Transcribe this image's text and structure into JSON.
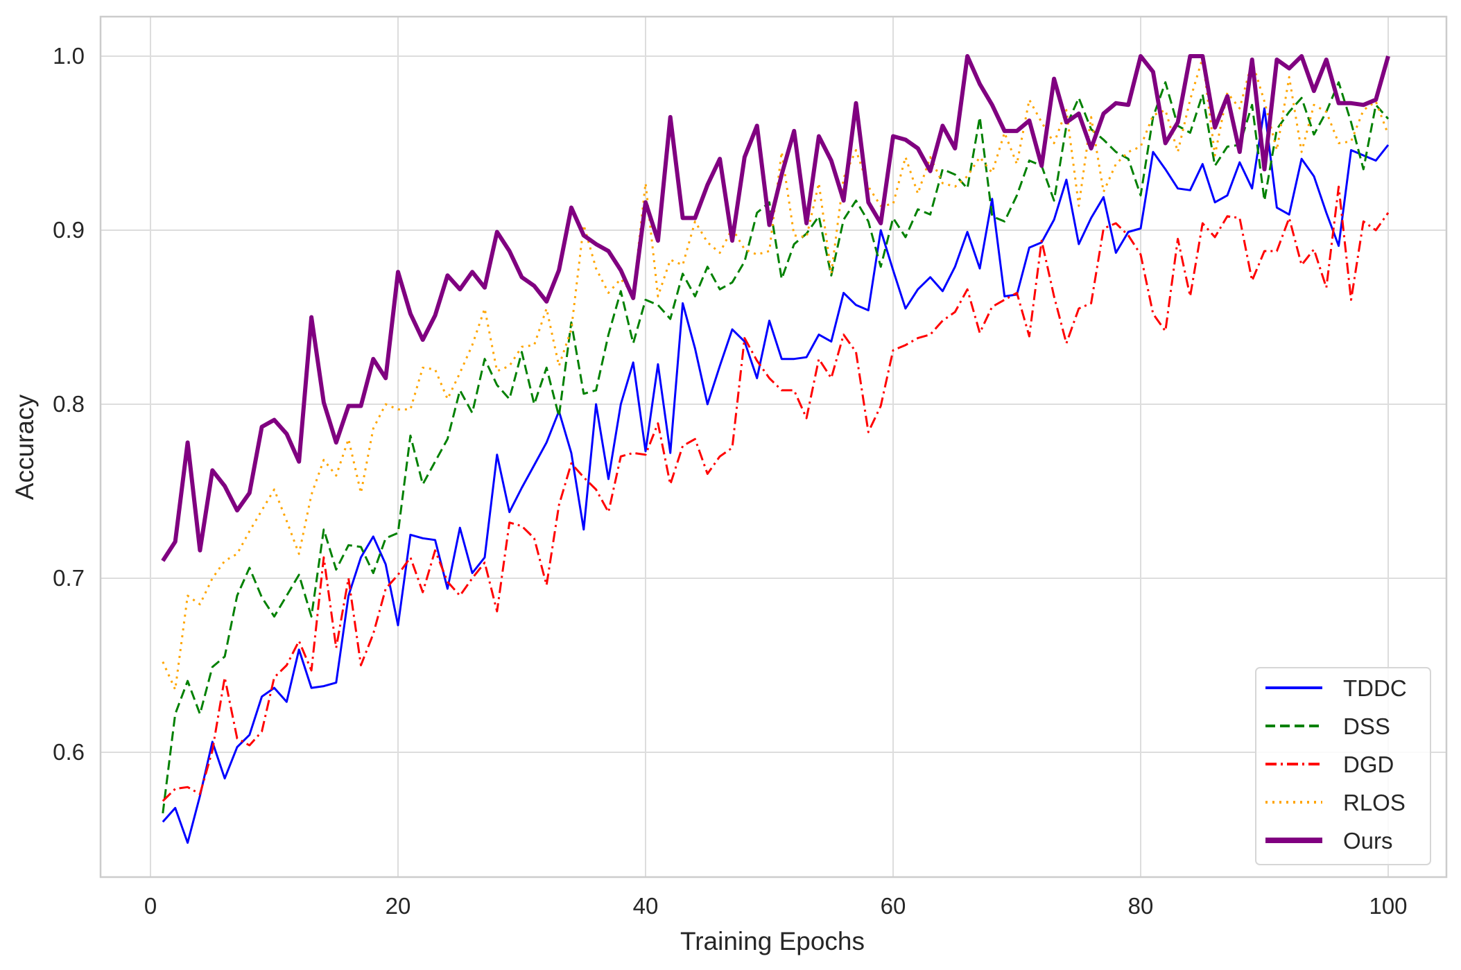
{
  "chart_data": {
    "type": "line",
    "title": "",
    "xlabel": "Training Epochs",
    "ylabel": "Accuracy",
    "xlim": [
      -4,
      104
    ],
    "ylim": [
      0.522,
      1.022
    ],
    "xticks": [
      0,
      20,
      40,
      60,
      80,
      100
    ],
    "xtick_labels": [
      "0",
      "20",
      "40",
      "60",
      "80",
      "100"
    ],
    "yticks": [
      0.6,
      0.7,
      0.8,
      0.9,
      1.0
    ],
    "ytick_labels": [
      "0.6",
      "0.7",
      "0.8",
      "0.9",
      "1.0"
    ],
    "grid": true,
    "legend_position": "lower right",
    "x": [
      1,
      2,
      3,
      4,
      5,
      6,
      7,
      8,
      9,
      10,
      11,
      12,
      13,
      14,
      15,
      16,
      17,
      18,
      19,
      20,
      21,
      22,
      23,
      24,
      25,
      26,
      27,
      28,
      29,
      30,
      31,
      32,
      33,
      34,
      35,
      36,
      37,
      38,
      39,
      40,
      41,
      42,
      43,
      44,
      45,
      46,
      47,
      48,
      49,
      50,
      51,
      52,
      53,
      54,
      55,
      56,
      57,
      58,
      59,
      60,
      61,
      62,
      63,
      64,
      65,
      66,
      67,
      68,
      69,
      70,
      71,
      72,
      73,
      74,
      75,
      76,
      77,
      78,
      79,
      80,
      81,
      82,
      83,
      84,
      85,
      86,
      87,
      88,
      89,
      90,
      91,
      92,
      93,
      94,
      95,
      96,
      97,
      98,
      99,
      100
    ],
    "series": [
      {
        "name": "TDDC",
        "color": "#0000ff",
        "style": "solid",
        "linewidth": 2,
        "values": [
          0.56,
          0.568,
          0.548,
          0.575,
          0.606,
          0.585,
          0.603,
          0.61,
          0.632,
          0.637,
          0.629,
          0.659,
          0.637,
          0.638,
          0.64,
          0.69,
          0.712,
          0.724,
          0.708,
          0.673,
          0.725,
          0.723,
          0.722,
          0.694,
          0.729,
          0.703,
          0.712,
          0.771,
          0.738,
          0.752,
          0.765,
          0.778,
          0.796,
          0.772,
          0.728,
          0.8,
          0.757,
          0.8,
          0.824,
          0.773,
          0.823,
          0.772,
          0.858,
          0.832,
          0.8,
          0.822,
          0.843,
          0.836,
          0.815,
          0.848,
          0.826,
          0.826,
          0.827,
          0.84,
          0.836,
          0.864,
          0.857,
          0.854,
          0.9,
          0.877,
          0.855,
          0.866,
          0.873,
          0.865,
          0.879,
          0.899,
          0.878,
          0.918,
          0.862,
          0.863,
          0.89,
          0.893,
          0.906,
          0.929,
          0.892,
          0.907,
          0.919,
          0.887,
          0.899,
          0.901,
          0.945,
          0.935,
          0.924,
          0.923,
          0.938,
          0.916,
          0.92,
          0.939,
          0.924,
          0.97,
          0.913,
          0.909,
          0.941,
          0.931,
          0.91,
          0.891,
          0.946,
          0.943,
          0.94,
          0.949
        ]
      },
      {
        "name": "DSS",
        "color": "#008000",
        "style": "dashed",
        "linewidth": 2,
        "values": [
          0.565,
          0.622,
          0.641,
          0.622,
          0.649,
          0.655,
          0.69,
          0.706,
          0.689,
          0.678,
          0.69,
          0.702,
          0.678,
          0.728,
          0.705,
          0.719,
          0.718,
          0.703,
          0.723,
          0.726,
          0.782,
          0.754,
          0.767,
          0.78,
          0.808,
          0.795,
          0.826,
          0.811,
          0.803,
          0.83,
          0.8,
          0.821,
          0.793,
          0.847,
          0.806,
          0.808,
          0.84,
          0.865,
          0.835,
          0.86,
          0.857,
          0.849,
          0.875,
          0.862,
          0.879,
          0.866,
          0.87,
          0.882,
          0.91,
          0.916,
          0.872,
          0.892,
          0.898,
          0.908,
          0.874,
          0.906,
          0.917,
          0.905,
          0.879,
          0.907,
          0.896,
          0.912,
          0.909,
          0.935,
          0.932,
          0.924,
          0.965,
          0.908,
          0.905,
          0.92,
          0.94,
          0.937,
          0.917,
          0.96,
          0.976,
          0.958,
          0.952,
          0.945,
          0.941,
          0.92,
          0.965,
          0.985,
          0.96,
          0.956,
          0.978,
          0.937,
          0.948,
          0.949,
          0.972,
          0.917,
          0.958,
          0.968,
          0.976,
          0.955,
          0.968,
          0.985,
          0.962,
          0.935,
          0.972,
          0.964
        ]
      },
      {
        "name": "DGD",
        "color": "#ff0000",
        "style": "dashdot",
        "linewidth": 2,
        "values": [
          0.572,
          0.579,
          0.58,
          0.576,
          0.601,
          0.643,
          0.608,
          0.604,
          0.612,
          0.643,
          0.65,
          0.664,
          0.647,
          0.712,
          0.66,
          0.7,
          0.65,
          0.668,
          0.694,
          0.702,
          0.712,
          0.692,
          0.716,
          0.698,
          0.69,
          0.7,
          0.709,
          0.681,
          0.732,
          0.73,
          0.723,
          0.696,
          0.742,
          0.766,
          0.758,
          0.751,
          0.738,
          0.77,
          0.772,
          0.771,
          0.789,
          0.754,
          0.776,
          0.78,
          0.76,
          0.77,
          0.775,
          0.838,
          0.825,
          0.815,
          0.808,
          0.808,
          0.792,
          0.826,
          0.815,
          0.84,
          0.83,
          0.784,
          0.799,
          0.831,
          0.834,
          0.838,
          0.84,
          0.848,
          0.853,
          0.866,
          0.841,
          0.856,
          0.86,
          0.864,
          0.839,
          0.894,
          0.862,
          0.835,
          0.855,
          0.858,
          0.901,
          0.904,
          0.897,
          0.886,
          0.852,
          0.842,
          0.895,
          0.862,
          0.904,
          0.896,
          0.908,
          0.907,
          0.871,
          0.888,
          0.888,
          0.907,
          0.88,
          0.889,
          0.867,
          0.925,
          0.86,
          0.905,
          0.9,
          0.91
        ]
      },
      {
        "name": "RLOS",
        "color": "#ffa500",
        "style": "dotted",
        "linewidth": 2,
        "values": [
          0.652,
          0.636,
          0.69,
          0.685,
          0.7,
          0.71,
          0.714,
          0.727,
          0.739,
          0.751,
          0.733,
          0.714,
          0.748,
          0.768,
          0.759,
          0.78,
          0.749,
          0.786,
          0.8,
          0.797,
          0.797,
          0.821,
          0.82,
          0.803,
          0.818,
          0.834,
          0.855,
          0.819,
          0.822,
          0.833,
          0.834,
          0.855,
          0.822,
          0.843,
          0.903,
          0.878,
          0.864,
          0.872,
          0.863,
          0.927,
          0.862,
          0.883,
          0.88,
          0.905,
          0.893,
          0.887,
          0.901,
          0.889,
          0.886,
          0.888,
          0.945,
          0.897,
          0.896,
          0.927,
          0.875,
          0.93,
          0.946,
          0.925,
          0.914,
          0.915,
          0.942,
          0.921,
          0.942,
          0.927,
          0.925,
          0.931,
          0.942,
          0.933,
          0.956,
          0.938,
          0.975,
          0.962,
          0.95,
          0.969,
          0.914,
          0.965,
          0.922,
          0.938,
          0.945,
          0.948,
          0.966,
          0.969,
          0.945,
          0.975,
          0.999,
          0.943,
          0.979,
          0.97,
          0.997,
          0.974,
          0.946,
          0.988,
          0.945,
          0.972,
          0.968,
          0.95,
          0.951,
          0.969,
          0.974,
          0.955
        ]
      },
      {
        "name": "Ours",
        "color": "#800080",
        "style": "solid",
        "linewidth": 4,
        "values": [
          0.71,
          0.721,
          0.778,
          0.716,
          0.762,
          0.753,
          0.739,
          0.749,
          0.787,
          0.791,
          0.783,
          0.767,
          0.85,
          0.801,
          0.778,
          0.799,
          0.799,
          0.826,
          0.815,
          0.876,
          0.852,
          0.837,
          0.851,
          0.874,
          0.866,
          0.876,
          0.867,
          0.899,
          0.888,
          0.873,
          0.868,
          0.859,
          0.877,
          0.913,
          0.897,
          0.892,
          0.888,
          0.877,
          0.861,
          0.916,
          0.894,
          0.965,
          0.907,
          0.907,
          0.926,
          0.941,
          0.894,
          0.942,
          0.96,
          0.903,
          0.932,
          0.957,
          0.904,
          0.954,
          0.94,
          0.917,
          0.973,
          0.916,
          0.904,
          0.954,
          0.952,
          0.947,
          0.934,
          0.96,
          0.947,
          1.0,
          0.984,
          0.972,
          0.957,
          0.957,
          0.963,
          0.937,
          0.987,
          0.962,
          0.967,
          0.947,
          0.967,
          0.973,
          0.972,
          1.0,
          0.991,
          0.95,
          0.962,
          1.0,
          1.0,
          0.959,
          0.977,
          0.945,
          0.998,
          0.935,
          0.998,
          0.993,
          1.0,
          0.98,
          0.998,
          0.973,
          0.973,
          0.972,
          0.975,
          1.0
        ]
      }
    ]
  },
  "legend": {
    "items": [
      "TDDC",
      "DSS",
      "DGD",
      "RLOS",
      "Ours"
    ]
  }
}
